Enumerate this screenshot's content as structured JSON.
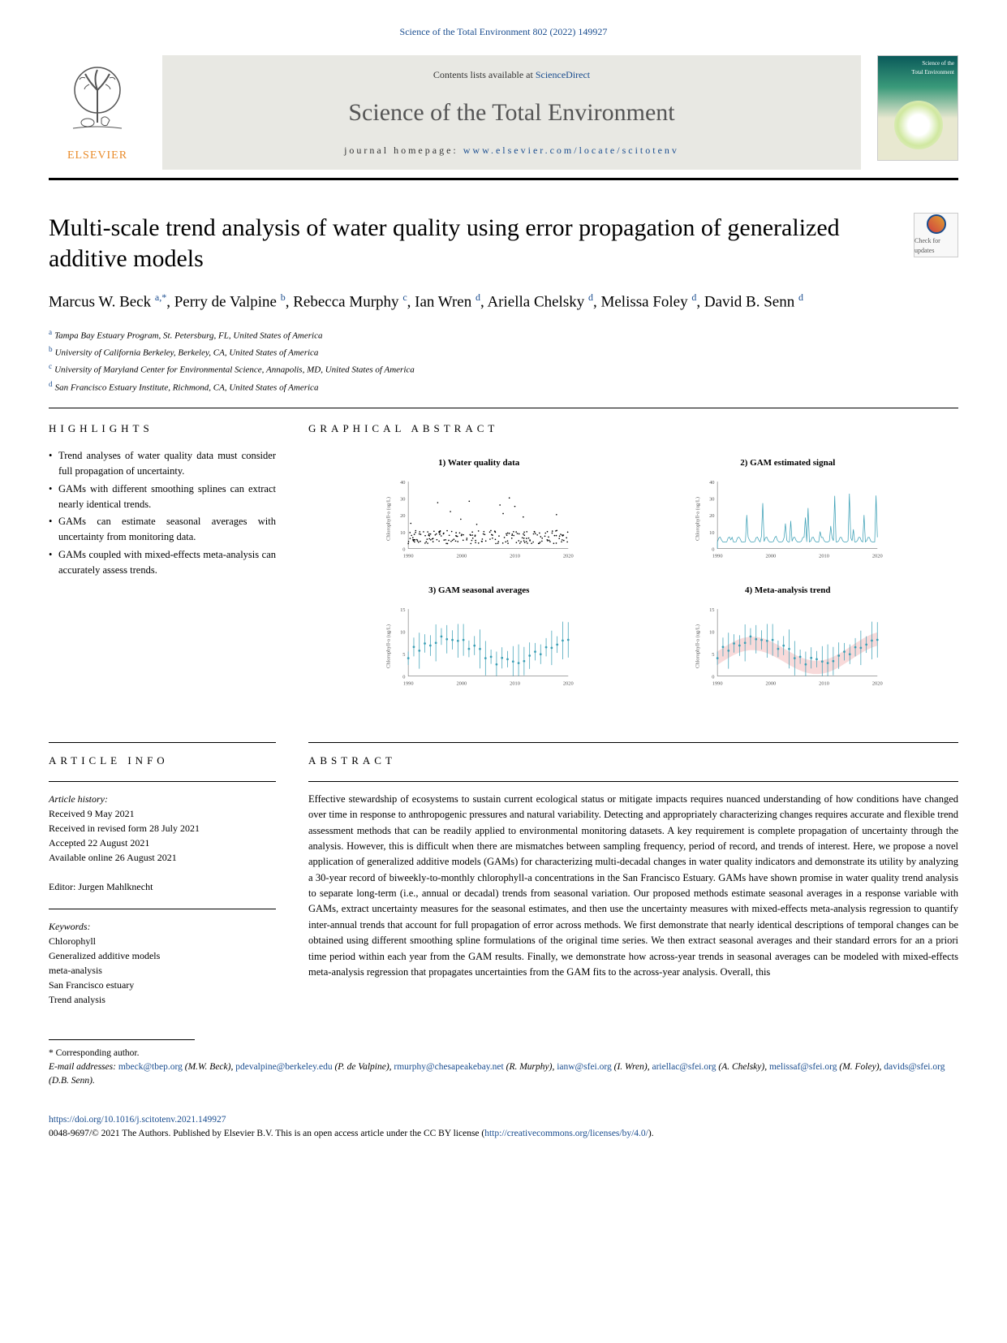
{
  "journal_ref": "Science of the Total Environment 802 (2022) 149927",
  "masthead": {
    "contents_prefix": "Contents lists available at ",
    "contents_link": "ScienceDirect",
    "journal_name": "Science of the Total Environment",
    "homepage_prefix": "journal homepage: ",
    "homepage_link": "www.elsevier.com/locate/scitotenv",
    "elsevier": "ELSEVIER",
    "updates_label": "Check for updates"
  },
  "title": "Multi-scale trend analysis of water quality using error propagation of generalized additive models",
  "authors_html": "Marcus W. Beck|a,*|, Perry de Valpine|b|, Rebecca Murphy|c|, Ian Wren|d|, Ariella Chelsky|d|, Melissa Foley|d|, David B. Senn|d|",
  "authors": [
    {
      "name": "Marcus W. Beck ",
      "sup": "a,*"
    },
    {
      "name": ", Perry de Valpine ",
      "sup": "b"
    },
    {
      "name": ", Rebecca Murphy ",
      "sup": "c"
    },
    {
      "name": ", Ian Wren ",
      "sup": "d"
    },
    {
      "name": ", Ariella Chelsky ",
      "sup": "d"
    },
    {
      "name": ", Melissa Foley ",
      "sup": "d"
    },
    {
      "name": ", David B. Senn ",
      "sup": "d"
    }
  ],
  "affiliations": [
    {
      "sup": "a",
      "text": "Tampa Bay Estuary Program, St. Petersburg, FL, United States of America"
    },
    {
      "sup": "b",
      "text": "University of California Berkeley, Berkeley, CA, United States of America"
    },
    {
      "sup": "c",
      "text": "University of Maryland Center for Environmental Science, Annapolis, MD, United States of America"
    },
    {
      "sup": "d",
      "text": "San Francisco Estuary Institute, Richmond, CA, United States of America"
    }
  ],
  "highlights": {
    "head": "HIGHLIGHTS",
    "items": [
      "Trend analyses of water quality data must consider full propagation of uncertainty.",
      "GAMs with different smoothing splines can extract nearly identical trends.",
      "GAMs can estimate seasonal averages with uncertainty from monitoring data.",
      "GAMs coupled with mixed-effects meta-analysis can accurately assess trends."
    ]
  },
  "graphical": {
    "head": "GRAPHICAL ABSTRACT",
    "panels": [
      {
        "title": "1) Water quality data",
        "type": "scatter",
        "ylabel": "Chlorophyll-a (ug/L)",
        "ymax": 40,
        "xticks": [
          "1990",
          "2000",
          "2010",
          "2020"
        ],
        "color": "#000000"
      },
      {
        "title": "2) GAM estimated signal",
        "type": "line-spiky",
        "ylabel": "Chlorophyll-a (ug/L)",
        "ymax": 40,
        "xticks": [
          "1990",
          "2000",
          "2010",
          "2020"
        ],
        "color": "#3a9fb5"
      },
      {
        "title": "3) GAM seasonal averages",
        "type": "errorbar",
        "ylabel": "Chlorophyll-a (ug/L)",
        "ymax": 15,
        "xticks": [
          "1990",
          "2000",
          "2010",
          "2020"
        ],
        "color": "#3a9fb5"
      },
      {
        "title": "4) Meta-analysis trend",
        "type": "errorbar-trend",
        "ylabel": "Chlorophyll-a (ug/L)",
        "ymax": 15,
        "xticks": [
          "1990",
          "2000",
          "2010",
          "2020"
        ],
        "color": "#3a9fb5",
        "band_color": "#f4c2c2"
      }
    ]
  },
  "article_info": {
    "head": "ARTICLE INFO",
    "history_head": "Article history:",
    "history": [
      "Received 9 May 2021",
      "Received in revised form 28 July 2021",
      "Accepted 22 August 2021",
      "Available online 26 August 2021"
    ],
    "editor": "Editor: Jurgen Mahlknecht",
    "keywords_head": "Keywords:",
    "keywords": [
      "Chlorophyll",
      "Generalized additive models",
      "meta-analysis",
      "San Francisco estuary",
      "Trend analysis"
    ]
  },
  "abstract": {
    "head": "ABSTRACT",
    "text": "Effective stewardship of ecosystems to sustain current ecological status or mitigate impacts requires nuanced understanding of how conditions have changed over time in response to anthropogenic pressures and natural variability. Detecting and appropriately characterizing changes requires accurate and flexible trend assessment methods that can be readily applied to environmental monitoring datasets. A key requirement is complete propagation of uncertainty through the analysis. However, this is difficult when there are mismatches between sampling frequency, period of record, and trends of interest. Here, we propose a novel application of generalized additive models (GAMs) for characterizing multi-decadal changes in water quality indicators and demonstrate its utility by analyzing a 30-year record of biweekly-to-monthly chlorophyll-a concentrations in the San Francisco Estuary. GAMs have shown promise in water quality trend analysis to separate long-term (i.e., annual or decadal) trends from seasonal variation. Our proposed methods estimate seasonal averages in a response variable with GAMs, extract uncertainty measures for the seasonal estimates, and then use the uncertainty measures with mixed-effects meta-analysis regression to quantify inter-annual trends that account for full propagation of error across methods. We first demonstrate that nearly identical descriptions of temporal changes can be obtained using different smoothing spline formulations of the original time series. We then extract seasonal averages and their standard errors for an a priori time period within each year from the GAM results. Finally, we demonstrate how across-year trends in seasonal averages can be modeled with mixed-effects meta-analysis regression that propagates uncertainties from the GAM fits to the across-year analysis. Overall, this"
  },
  "footer": {
    "corresp": "* Corresponding author.",
    "emails_prefix": "E-mail addresses: ",
    "emails": [
      {
        "addr": "mbeck@tbep.org",
        "who": "(M.W. Beck), "
      },
      {
        "addr": "pdevalpine@berkeley.edu",
        "who": "(P. de Valpine), "
      },
      {
        "addr": "rmurphy@chesapeakebay.net",
        "who": "(R. Murphy), "
      },
      {
        "addr": "ianw@sfei.org",
        "who": "(I. Wren), "
      },
      {
        "addr": "ariellac@sfei.org",
        "who": "(A. Chelsky), "
      },
      {
        "addr": "melissaf@sfei.org",
        "who": "(M. Foley), "
      },
      {
        "addr": "davids@sfei.org",
        "who": "(D.B. Senn)."
      }
    ],
    "doi": "https://doi.org/10.1016/j.scitotenv.2021.149927",
    "copyright_prefix": "0048-9697/© 2021 The Authors. Published by Elsevier B.V. This is an open access article under the CC BY license (",
    "cc_link": "http://creativecommons.org/licenses/by/4.0/",
    "copyright_suffix": ")."
  }
}
